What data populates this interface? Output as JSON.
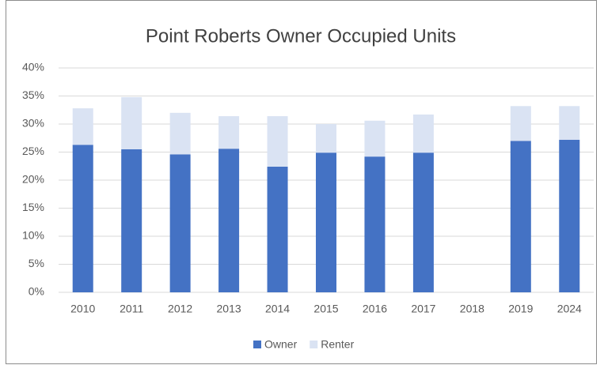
{
  "chart_data": {
    "type": "stacked_bar",
    "title": "Point Roberts Owner Occupied Units",
    "categories": [
      "2010",
      "2011",
      "2012",
      "2013",
      "2014",
      "2015",
      "2016",
      "2017",
      "2018",
      "2019",
      "2024"
    ],
    "series": [
      {
        "name": "Owner",
        "color": "#4472c4",
        "values": [
          26.3,
          25.5,
          24.6,
          25.6,
          22.4,
          24.9,
          24.2,
          24.9,
          null,
          27.0,
          27.2
        ]
      },
      {
        "name": "Renter",
        "color": "#dae3f3",
        "values": [
          6.5,
          9.3,
          7.4,
          5.8,
          9.0,
          5.1,
          6.4,
          6.8,
          null,
          6.2,
          6.0
        ]
      }
    ],
    "ylim": [
      0,
      40
    ],
    "yticks": [
      {
        "value": 0,
        "label": "0%"
      },
      {
        "value": 5,
        "label": "5%"
      },
      {
        "value": 10,
        "label": "10%"
      },
      {
        "value": 15,
        "label": "15%"
      },
      {
        "value": 20,
        "label": "20%"
      },
      {
        "value": 25,
        "label": "25%"
      },
      {
        "value": 30,
        "label": "30%"
      },
      {
        "value": 35,
        "label": "35%"
      },
      {
        "value": 40,
        "label": "40%"
      }
    ],
    "grid": true,
    "legend": "bottom"
  }
}
